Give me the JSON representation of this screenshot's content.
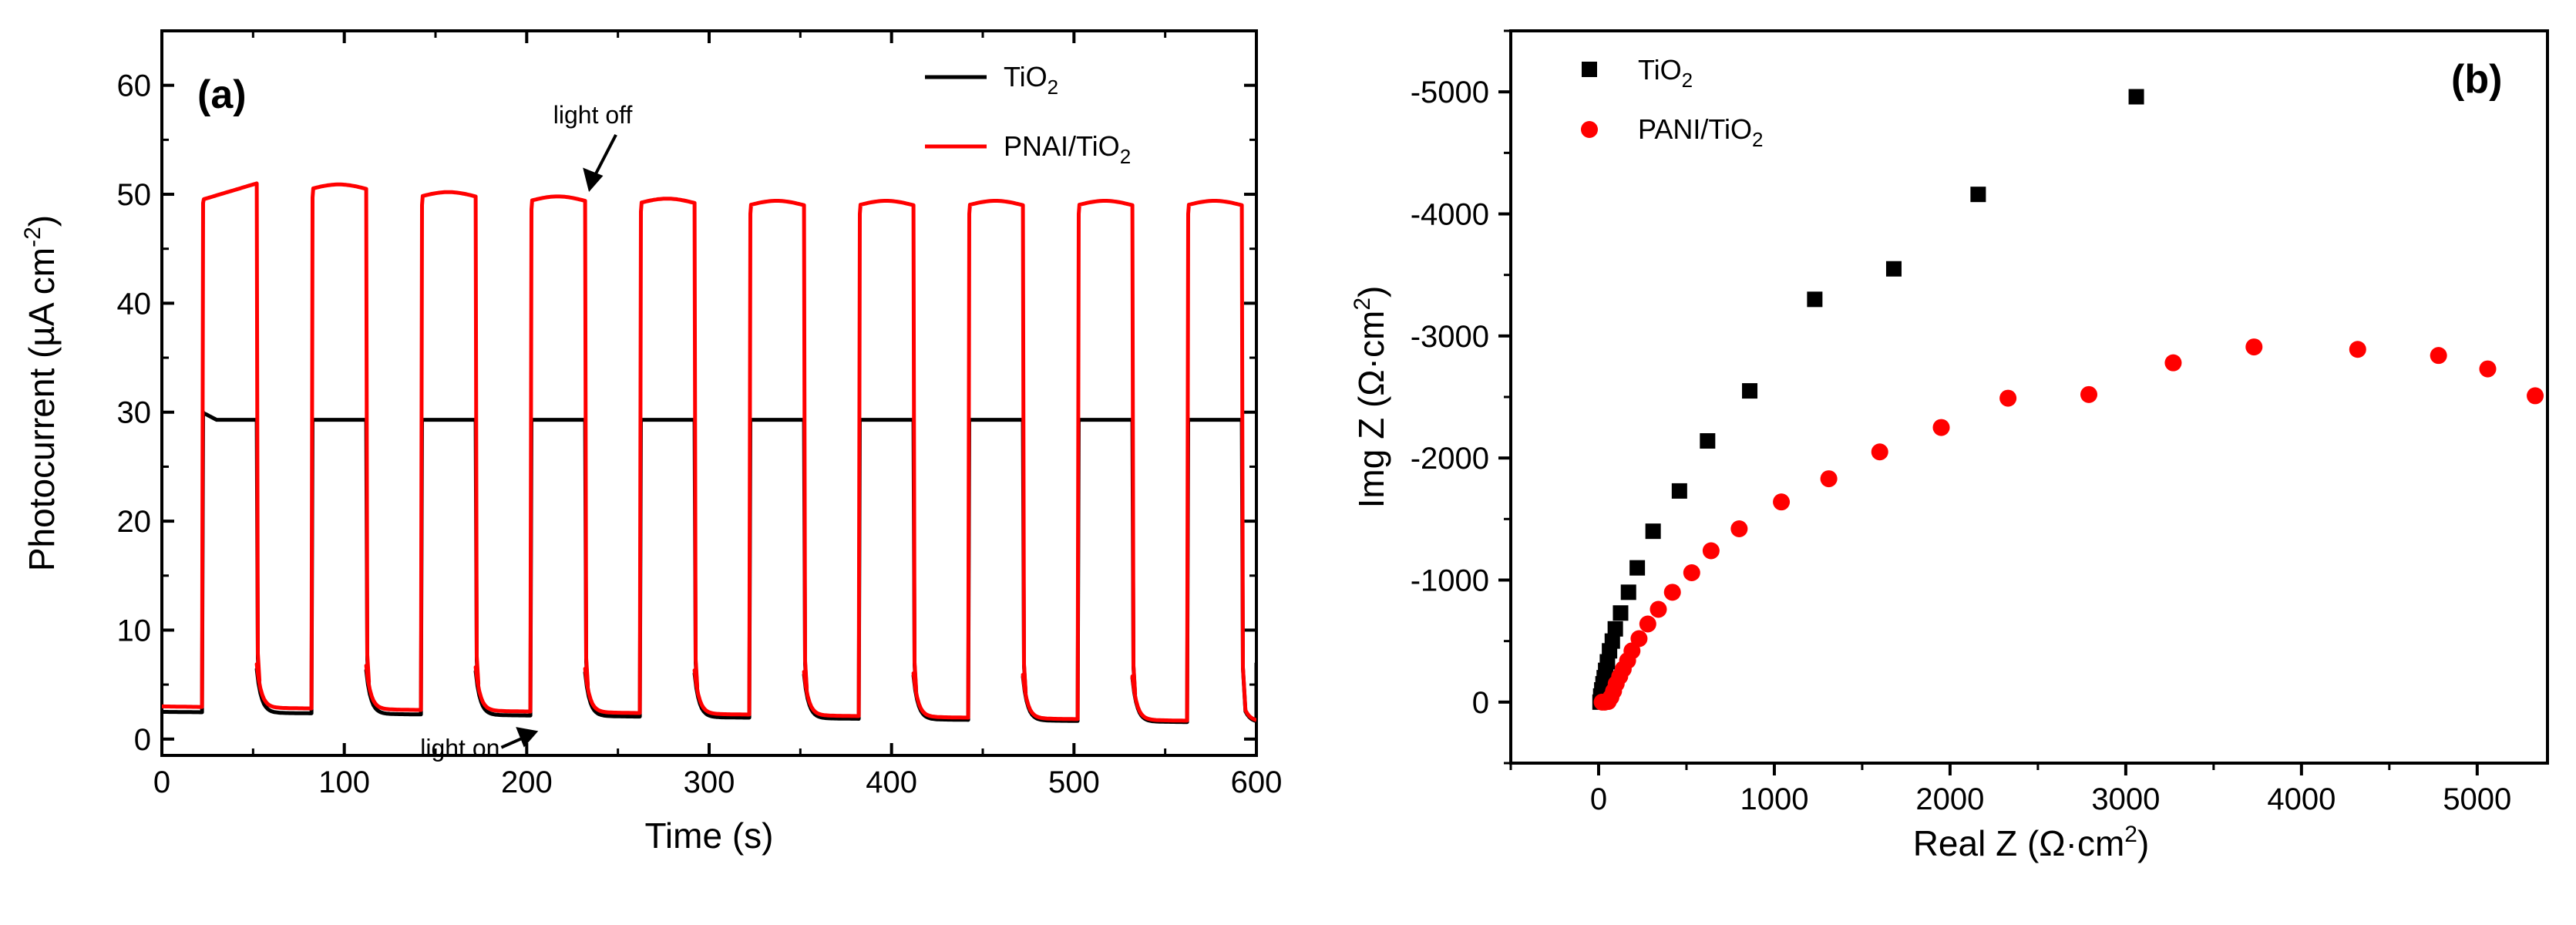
{
  "chart_data": [
    {
      "id": "a",
      "type": "line",
      "panel_label": "(a)",
      "xlabel": "Time (s)",
      "ylabel": "Photocurrent (µA cm",
      "ylabel_sup": "-2",
      "ylabel_close": ")",
      "xlim": [
        0,
        600
      ],
      "ylim": [
        -1.5,
        65
      ],
      "xticks": [
        0,
        100,
        200,
        300,
        400,
        500,
        600
      ],
      "yticks": [
        0,
        10,
        20,
        30,
        40,
        50,
        60
      ],
      "legend_position": "top-right",
      "cycle": {
        "first_on": 22,
        "period": 60,
        "on_duration": 30,
        "count": 10
      },
      "series": [
        {
          "name": "TiO2",
          "label_main": "TiO",
          "label_sub": "2",
          "color": "#000000",
          "dark_start": 2.5,
          "dark_end": 1.5,
          "on_peak": 30,
          "on_plateau": 29.3
        },
        {
          "name": "PNAI/TiO2",
          "label_main": "PNAI/TiO",
          "label_sub": "2",
          "color": "#ff0000",
          "dark_start": 3.0,
          "dark_end": 1.6,
          "on_plateau_start": 49.5,
          "on_plateau_end": 51.0,
          "cycle_plateaus": [
            50.0,
            50.5,
            49.8,
            49.4,
            49.2,
            49.0,
            49.0,
            49.0,
            49.0,
            49.0
          ]
        }
      ],
      "annotations": [
        {
          "text": "light off",
          "x": 232,
          "y": 49.8
        },
        {
          "text": "light on",
          "x": 203,
          "y": 0.5
        }
      ]
    },
    {
      "id": "b",
      "type": "scatter",
      "panel_label": "(b)",
      "xlabel": "Real Z (Ω·cm",
      "xlabel_sup": "2",
      "xlabel_close": ")",
      "ylabel": "Img Z (Ω·cm",
      "ylabel_sup": "2",
      "ylabel_close": ")",
      "xlim": [
        -500,
        5400
      ],
      "ylim": [
        500,
        -5500
      ],
      "xticks": [
        0,
        1000,
        2000,
        3000,
        4000,
        5000
      ],
      "yticks": [
        0,
        -1000,
        -2000,
        -3000,
        -4000,
        -5000
      ],
      "legend_position": "top-left",
      "series": [
        {
          "name": "TiO2",
          "label_main": "TiO",
          "label_sub": "2",
          "marker": "square",
          "color": "#000000",
          "points": [
            [
              8,
              0
            ],
            [
              12,
              -50
            ],
            [
              18,
              -100
            ],
            [
              25,
              -150
            ],
            [
              32,
              -200
            ],
            [
              40,
              -260
            ],
            [
              50,
              -330
            ],
            [
              62,
              -420
            ],
            [
              78,
              -500
            ],
            [
              95,
              -600
            ],
            [
              125,
              -730
            ],
            [
              170,
              -900
            ],
            [
              220,
              -1100
            ],
            [
              310,
              -1400
            ],
            [
              460,
              -1730
            ],
            [
              620,
              -2140
            ],
            [
              860,
              -2550
            ],
            [
              1230,
              -3300
            ],
            [
              1680,
              -3550
            ],
            [
              2160,
              -4160
            ],
            [
              3060,
              -4960
            ]
          ]
        },
        {
          "name": "PANI/TiO2",
          "label_main": "PANI/TiO",
          "label_sub": "2",
          "marker": "circle",
          "color": "#ff0000",
          "points": [
            [
              20,
              0
            ],
            [
              35,
              0
            ],
            [
              55,
              -5
            ],
            [
              70,
              -40
            ],
            [
              85,
              -90
            ],
            [
              100,
              -150
            ],
            [
              120,
              -210
            ],
            [
              140,
              -270
            ],
            [
              165,
              -340
            ],
            [
              190,
              -420
            ],
            [
              230,
              -520
            ],
            [
              280,
              -640
            ],
            [
              340,
              -760
            ],
            [
              420,
              -900
            ],
            [
              530,
              -1060
            ],
            [
              640,
              -1240
            ],
            [
              800,
              -1420
            ],
            [
              1040,
              -1640
            ],
            [
              1310,
              -1830
            ],
            [
              1600,
              -2050
            ],
            [
              1950,
              -2250
            ],
            [
              2330,
              -2490
            ],
            [
              2790,
              -2520
            ],
            [
              3270,
              -2780
            ],
            [
              3730,
              -2910
            ],
            [
              4320,
              -2890
            ],
            [
              4780,
              -2840
            ],
            [
              5060,
              -2730
            ],
            [
              5330,
              -2510
            ]
          ]
        }
      ]
    }
  ]
}
